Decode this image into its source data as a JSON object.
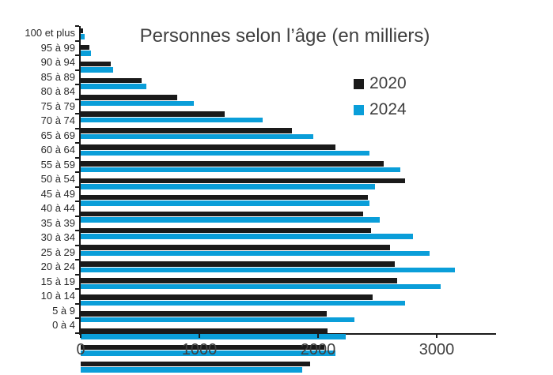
{
  "colors": {
    "series_2020": "#1a1a1a",
    "series_2024": "#0a9ed9",
    "axis": "#1a1a1a",
    "title_text": "#3f3f3f",
    "tick_text": "#404040"
  },
  "chart_data": {
    "type": "bar",
    "orientation": "horizontal",
    "title": "Personnes selon l’âge (en milliers)",
    "xlabel": "",
    "ylabel": "",
    "xlim": [
      0,
      3500
    ],
    "x_ticks": [
      0,
      1000,
      2000,
      3000
    ],
    "grid": false,
    "legend_position": "upper-right-inside",
    "categories_top_to_bottom": [
      "100 et plus",
      "95 à 99",
      "90 à 94",
      "85 à 89",
      "80 à 84",
      "75 à 79",
      "70 à 74",
      "65 à 69",
      "60 à 64",
      "55 à 59",
      "50 à 54",
      "45 à 49",
      "40 à 44",
      "35 à 39",
      "30 à 34",
      "25 à 29",
      "20 à 24",
      "15 à 19",
      "10 à 14",
      "5 à 9",
      "0 à 4"
    ],
    "series": [
      {
        "name": "2020",
        "color": "#1a1a1a",
        "values": [
          20,
          70,
          255,
          515,
          815,
          1210,
          1780,
          2145,
          2550,
          2730,
          2420,
          2380,
          2445,
          2605,
          2645,
          2665,
          2460,
          2075,
          2080,
          2050,
          1930
        ]
      },
      {
        "name": "2024",
        "color": "#0a9ed9",
        "values": [
          30,
          85,
          275,
          555,
          955,
          1530,
          1960,
          2430,
          2695,
          2480,
          2435,
          2520,
          2800,
          2940,
          3150,
          3035,
          2730,
          2305,
          2230,
          2145,
          1865
        ]
      }
    ]
  }
}
